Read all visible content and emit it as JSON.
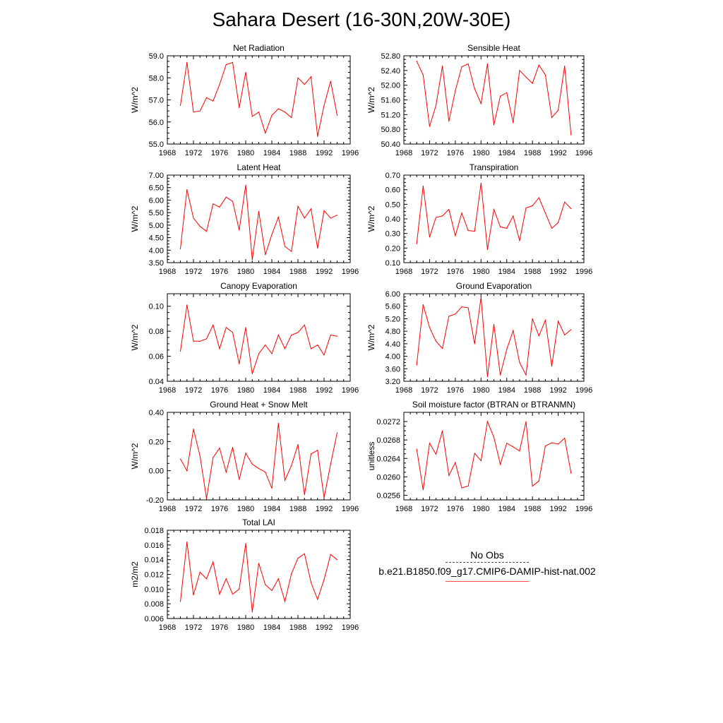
{
  "title": "Sahara Desert (16-30N,20W-30E)",
  "legend": {
    "obs_label": "No Obs",
    "model_label": "b.e21.B1850.f09_g17.CMIP6-DAMIP-hist-nat.002"
  },
  "colors": {
    "series": "#ff0000",
    "obs": "#4b4b7a"
  },
  "chart_data": [
    {
      "type": "line",
      "title": "Net Radiation",
      "xlabel": "",
      "ylabel": "W/m^2",
      "xlim": [
        1968,
        1996
      ],
      "ylim": [
        55.0,
        59.0
      ],
      "xticks": [
        "1968",
        "1972",
        "1976",
        "1980",
        "1984",
        "1988",
        "1992",
        "1996"
      ],
      "yticks": [
        "55.0",
        "56.0",
        "57.0",
        "58.0",
        "59.0"
      ],
      "x": [
        1970,
        1971,
        1972,
        1973,
        1974,
        1975,
        1976,
        1977,
        1978,
        1979,
        1980,
        1981,
        1982,
        1983,
        1984,
        1985,
        1986,
        1987,
        1988,
        1989,
        1990,
        1991,
        1992,
        1993,
        1994
      ],
      "series": [
        {
          "values": [
            56.75,
            58.7,
            56.45,
            56.5,
            57.1,
            56.95,
            57.7,
            58.6,
            58.7,
            56.65,
            58.25,
            56.25,
            56.45,
            55.5,
            56.3,
            56.6,
            56.45,
            56.2,
            58.0,
            57.7,
            58.05,
            55.35,
            56.75,
            57.85,
            56.3
          ]
        }
      ]
    },
    {
      "type": "line",
      "title": "Sensible Heat",
      "xlabel": "",
      "ylabel": "W/m^2",
      "xlim": [
        1968,
        1996
      ],
      "ylim": [
        50.4,
        52.8
      ],
      "xticks": [
        "1968",
        "1972",
        "1976",
        "1980",
        "1984",
        "1988",
        "1992",
        "1996"
      ],
      "yticks": [
        "50.40",
        "50.80",
        "51.20",
        "51.60",
        "52.00",
        "52.40",
        "52.80"
      ],
      "x": [
        1970,
        1971,
        1972,
        1973,
        1974,
        1975,
        1976,
        1977,
        1978,
        1979,
        1980,
        1981,
        1982,
        1983,
        1984,
        1985,
        1986,
        1987,
        1988,
        1989,
        1990,
        1991,
        1992,
        1993,
        1994
      ],
      "series": [
        {
          "values": [
            52.65,
            52.28,
            50.88,
            51.45,
            52.52,
            51.02,
            51.85,
            52.5,
            52.58,
            51.9,
            51.5,
            52.58,
            50.92,
            51.7,
            51.8,
            50.98,
            52.4,
            52.22,
            52.05,
            52.55,
            52.28,
            51.12,
            51.32,
            52.52,
            50.65
          ]
        }
      ]
    },
    {
      "type": "line",
      "title": "Latent Heat",
      "xlabel": "",
      "ylabel": "W/m^2",
      "xlim": [
        1968,
        1996
      ],
      "ylim": [
        3.5,
        7.0
      ],
      "xticks": [
        "1968",
        "1972",
        "1976",
        "1980",
        "1984",
        "1988",
        "1992",
        "1996"
      ],
      "yticks": [
        "3.50",
        "4.00",
        "4.50",
        "5.00",
        "5.50",
        "6.00",
        "6.50",
        "7.00"
      ],
      "x": [
        1970,
        1971,
        1972,
        1973,
        1974,
        1975,
        1976,
        1977,
        1978,
        1979,
        1980,
        1981,
        1982,
        1983,
        1984,
        1985,
        1986,
        1987,
        1988,
        1989,
        1990,
        1991,
        1992,
        1993,
        1994
      ],
      "series": [
        {
          "values": [
            4.05,
            6.42,
            5.28,
            4.95,
            4.75,
            5.85,
            5.72,
            6.12,
            5.95,
            4.8,
            6.6,
            3.62,
            5.55,
            3.82,
            4.62,
            5.32,
            4.15,
            3.95,
            5.75,
            5.28,
            5.65,
            4.08,
            5.58,
            5.28,
            5.4
          ]
        }
      ]
    },
    {
      "type": "line",
      "title": "Transpiration",
      "xlabel": "",
      "ylabel": "W/m^2",
      "xlim": [
        1968,
        1996
      ],
      "ylim": [
        0.1,
        0.7
      ],
      "xticks": [
        "1968",
        "1972",
        "1976",
        "1980",
        "1984",
        "1988",
        "1992",
        "1996"
      ],
      "yticks": [
        "0.10",
        "0.20",
        "0.30",
        "0.40",
        "0.50",
        "0.60",
        "0.70"
      ],
      "x": [
        1970,
        1971,
        1972,
        1973,
        1974,
        1975,
        1976,
        1977,
        1978,
        1979,
        1980,
        1981,
        1982,
        1983,
        1984,
        1985,
        1986,
        1987,
        1988,
        1989,
        1990,
        1991,
        1992,
        1993,
        1994
      ],
      "series": [
        {
          "values": [
            0.23,
            0.625,
            0.275,
            0.41,
            0.42,
            0.465,
            0.285,
            0.44,
            0.32,
            0.315,
            0.645,
            0.19,
            0.465,
            0.345,
            0.335,
            0.42,
            0.25,
            0.475,
            0.49,
            0.545,
            0.44,
            0.335,
            0.375,
            0.515,
            0.47
          ]
        }
      ]
    },
    {
      "type": "line",
      "title": "Canopy Evaporation",
      "xlabel": "",
      "ylabel": "W/m^2",
      "xlim": [
        1968,
        1996
      ],
      "ylim": [
        0.04,
        0.11
      ],
      "xticks": [
        "1968",
        "1972",
        "1976",
        "1980",
        "1984",
        "1988",
        "1992",
        "1996"
      ],
      "yticks": [
        "0.04",
        "0.06",
        "0.08",
        "0.10"
      ],
      "x": [
        1970,
        1971,
        1972,
        1973,
        1974,
        1975,
        1976,
        1977,
        1978,
        1979,
        1980,
        1981,
        1982,
        1983,
        1984,
        1985,
        1986,
        1987,
        1988,
        1989,
        1990,
        1991,
        1992,
        1993,
        1994
      ],
      "series": [
        {
          "values": [
            0.064,
            0.101,
            0.072,
            0.072,
            0.074,
            0.085,
            0.066,
            0.083,
            0.079,
            0.054,
            0.083,
            0.046,
            0.062,
            0.069,
            0.062,
            0.077,
            0.066,
            0.077,
            0.079,
            0.085,
            0.066,
            0.069,
            0.061,
            0.077,
            0.076
          ]
        }
      ]
    },
    {
      "type": "line",
      "title": "Ground Evaporation",
      "xlabel": "",
      "ylabel": "W/m^2",
      "xlim": [
        1968,
        1996
      ],
      "ylim": [
        3.2,
        6.0
      ],
      "xticks": [
        "1968",
        "1972",
        "1976",
        "1980",
        "1984",
        "1988",
        "1992",
        "1996"
      ],
      "yticks": [
        "3.20",
        "3.60",
        "4.00",
        "4.40",
        "4.80",
        "5.20",
        "5.60",
        "6.00"
      ],
      "x": [
        1970,
        1971,
        1972,
        1973,
        1974,
        1975,
        1976,
        1977,
        1978,
        1979,
        1980,
        1981,
        1982,
        1983,
        1984,
        1985,
        1986,
        1987,
        1988,
        1989,
        1990,
        1991,
        1992,
        1993,
        1994
      ],
      "series": [
        {
          "values": [
            3.72,
            5.65,
            4.92,
            4.48,
            4.25,
            5.28,
            5.35,
            5.58,
            5.55,
            4.4,
            5.88,
            3.35,
            5.02,
            3.4,
            4.22,
            4.82,
            3.8,
            3.4,
            5.2,
            4.65,
            5.15,
            3.68,
            5.12,
            4.68,
            4.85
          ]
        }
      ]
    },
    {
      "type": "line",
      "title": "Ground Heat + Snow Melt",
      "xlabel": "",
      "ylabel": "W/m^2",
      "xlim": [
        1968,
        1996
      ],
      "ylim": [
        -0.2,
        0.4
      ],
      "xticks": [
        "1968",
        "1972",
        "1976",
        "1980",
        "1984",
        "1988",
        "1992",
        "1996"
      ],
      "yticks": [
        "-0.20",
        "0.00",
        "0.20",
        "0.40"
      ],
      "x": [
        1970,
        1971,
        1972,
        1973,
        1974,
        1975,
        1976,
        1977,
        1978,
        1979,
        1980,
        1981,
        1982,
        1983,
        1984,
        1985,
        1986,
        1987,
        1988,
        1989,
        1990,
        1991,
        1992,
        1993,
        1994
      ],
      "series": [
        {
          "values": [
            0.08,
            0.0,
            0.285,
            0.1,
            -0.19,
            0.09,
            0.155,
            -0.01,
            0.16,
            -0.06,
            0.12,
            0.045,
            0.015,
            -0.01,
            -0.12,
            0.325,
            -0.065,
            0.035,
            0.18,
            -0.165,
            0.115,
            0.14,
            -0.185,
            0.045,
            0.26
          ]
        }
      ]
    },
    {
      "type": "line",
      "title": "Soil moisture factor (BTRAN or BTRANMN)",
      "xlabel": "",
      "ylabel": "unitless",
      "xlim": [
        1968,
        1996
      ],
      "ylim": [
        0.0255,
        0.0274
      ],
      "xticks": [
        "1968",
        "1972",
        "1976",
        "1980",
        "1984",
        "1988",
        "1992",
        "1996"
      ],
      "yticks": [
        "0.0256",
        "0.0260",
        "0.0264",
        "0.0268",
        "0.0272"
      ],
      "x": [
        1970,
        1971,
        1972,
        1973,
        1974,
        1975,
        1976,
        1977,
        1978,
        1979,
        1980,
        1981,
        1982,
        1983,
        1984,
        1985,
        1986,
        1987,
        1988,
        1989,
        1990,
        1991,
        1992,
        1993,
        1994
      ],
      "series": [
        {
          "values": [
            0.0266,
            0.02572,
            0.02673,
            0.02649,
            0.027,
            0.02603,
            0.02631,
            0.02576,
            0.0258,
            0.02651,
            0.02635,
            0.0272,
            0.02686,
            0.02627,
            0.02673,
            0.02665,
            0.02656,
            0.0272,
            0.0258,
            0.02591,
            0.02667,
            0.02674,
            0.02671,
            0.02684,
            0.02608
          ]
        }
      ]
    },
    {
      "type": "line",
      "title": "Total LAI",
      "xlabel": "",
      "ylabel": "m2/m2",
      "xlim": [
        1968,
        1996
      ],
      "ylim": [
        0.006,
        0.018
      ],
      "xticks": [
        "1968",
        "1972",
        "1976",
        "1980",
        "1984",
        "1988",
        "1992",
        "1996"
      ],
      "yticks": [
        "0.006",
        "0.008",
        "0.010",
        "0.012",
        "0.014",
        "0.016",
        "0.018"
      ],
      "x": [
        1970,
        1971,
        1972,
        1973,
        1974,
        1975,
        1976,
        1977,
        1978,
        1979,
        1980,
        1981,
        1982,
        1983,
        1984,
        1985,
        1986,
        1987,
        1988,
        1989,
        1990,
        1991,
        1992,
        1993,
        1994
      ],
      "series": [
        {
          "values": [
            0.0083,
            0.0164,
            0.0092,
            0.0123,
            0.0114,
            0.0137,
            0.0093,
            0.0114,
            0.0093,
            0.01,
            0.0162,
            0.0069,
            0.0135,
            0.0106,
            0.0098,
            0.0114,
            0.0083,
            0.0121,
            0.0142,
            0.0148,
            0.0109,
            0.0086,
            0.0113,
            0.0147,
            0.014
          ]
        }
      ]
    }
  ]
}
